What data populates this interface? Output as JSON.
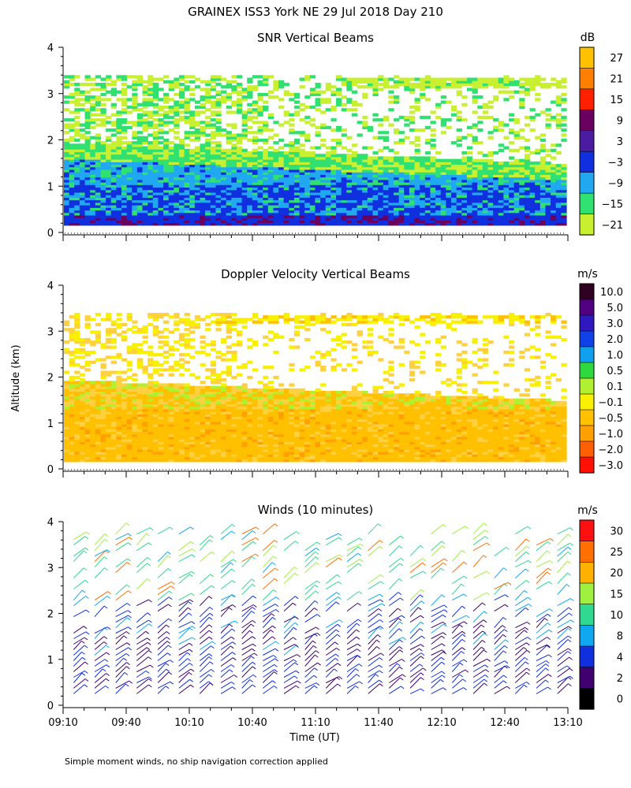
{
  "figure_title": "GRAINEX ISS3 York NE  29 Jul 2018 Day 210",
  "footnote": "Simple moment winds, no ship navigation correction applied",
  "shared_ylabel": "Altitude (km)",
  "colors": {
    "white": "#ffffff",
    "axis": "#000000"
  },
  "chart_data": [
    {
      "type": "heatmap",
      "title": "SNR Vertical Beams",
      "xlim": [
        "09:10",
        "13:10"
      ],
      "ylim": [
        0,
        4
      ],
      "yticks": [
        "0",
        "1",
        "2",
        "3",
        "4"
      ],
      "xticks_shown": false,
      "colorbar": {
        "unit": "dB",
        "labels": [
          "27",
          "21",
          "15",
          "9",
          "3",
          "−3",
          "−9",
          "−15",
          "−21"
        ],
        "colors": [
          "#ffc000",
          "#ff8000",
          "#ff2000",
          "#6a0060",
          "#4b1ca0",
          "#1030e0",
          "#20a8f0",
          "#30e070",
          "#c8f030"
        ]
      },
      "layers": [
        {
          "alt_top": 0.3,
          "color": "#1030e0"
        },
        {
          "alt_top": 1.0,
          "color": "#1030e0"
        },
        {
          "alt_top": 1.5,
          "color": "#20a8f0"
        },
        {
          "alt_top": 1.85,
          "color": "#30e070"
        },
        {
          "alt_top": 2.6,
          "color": "#c8f030"
        },
        {
          "alt_top": 3.3,
          "color": "#c8f030"
        }
      ]
    },
    {
      "type": "heatmap",
      "title": "Doppler Velocity Vertical Beams",
      "xlim": [
        "09:10",
        "13:10"
      ],
      "ylim": [
        0,
        4
      ],
      "yticks": [
        "0",
        "1",
        "2",
        "3",
        "4"
      ],
      "xticks_shown": false,
      "colorbar": {
        "unit": "m/s",
        "labels": [
          "10.0",
          "5.0",
          "3.0",
          "2.0",
          "1.0",
          "0.5",
          "0.1",
          "−0.1",
          "−0.5",
          "−1.0",
          "−2.0",
          "−3.0"
        ],
        "colors": [
          "#300020",
          "#500080",
          "#3018c0",
          "#1040e8",
          "#10a0f0",
          "#30d840",
          "#b0f030",
          "#f8f000",
          "#ffc000",
          "#ffa000",
          "#ff6000",
          "#ff1000"
        ]
      },
      "layers": [
        {
          "alt_top": 1.3,
          "color": "#ffc000"
        },
        {
          "alt_top": 1.85,
          "color": "#ffd040"
        },
        {
          "alt_top": 3.3,
          "color": "#f8f000"
        }
      ]
    },
    {
      "type": "scatter",
      "subtype": "wind-barbs",
      "title": "Winds (10 minutes)",
      "xlim": [
        "09:10",
        "13:10"
      ],
      "xticks": [
        "09:10",
        "09:40",
        "10:10",
        "10:40",
        "11:10",
        "11:40",
        "12:10",
        "12:40",
        "13:10"
      ],
      "xlabel": "Time (UT)",
      "ylim": [
        0,
        4
      ],
      "yticks": [
        "0",
        "1",
        "2",
        "3",
        "4"
      ],
      "profile_interval_min": 10,
      "colorbar": {
        "unit": "m/s",
        "labels": [
          "30",
          "25",
          "20",
          "15",
          "10",
          "8",
          "4",
          "2",
          "0"
        ],
        "colors": [
          "#ff1010",
          "#ff7000",
          "#ffb000",
          "#a0f040",
          "#30d890",
          "#10a8f0",
          "#1030e0",
          "#400070",
          "#000000"
        ]
      }
    }
  ]
}
